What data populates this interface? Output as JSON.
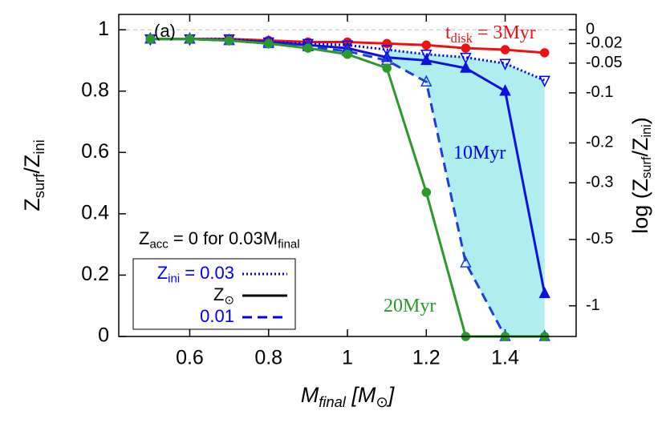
{
  "chart_data": {
    "type": "line",
    "xlabel": [
      "M",
      "final",
      " [M",
      "⊙",
      "]"
    ],
    "ylabel": [
      "Z",
      "surf",
      "/Z",
      "ini"
    ],
    "y2label": [
      "log (Z",
      "surf",
      "/Z",
      "ini",
      ")"
    ],
    "x": [
      0.5,
      0.6,
      0.7,
      0.8,
      0.9,
      1.0,
      1.1,
      1.2,
      1.3,
      1.4,
      1.5
    ],
    "xlim": [
      0.42,
      1.58
    ],
    "ylim": [
      0,
      1.05
    ],
    "xticks": [
      0.6,
      0.8,
      1,
      1.2,
      1.4
    ],
    "yticks": [
      0,
      0.2,
      0.4,
      0.6,
      0.8,
      1
    ],
    "y2lim": [
      0,
      1.05
    ],
    "y2_transform": "log10",
    "y2ticks": [
      0,
      -0.02,
      -0.05,
      -0.1,
      -0.2,
      -0.3,
      -0.5,
      -1
    ],
    "reference_line": 1,
    "series": [
      {
        "color": "#ee1111",
        "dash": "solid",
        "marker": "circle",
        "values": [
          0.97,
          0.97,
          0.97,
          0.965,
          0.96,
          0.96,
          0.955,
          0.95,
          0.94,
          0.935,
          0.925
        ]
      },
      {
        "color": "#0000ee",
        "dash": "dotted",
        "marker": "triangle-down-open",
        "values": [
          0.97,
          0.97,
          0.97,
          0.96,
          0.955,
          0.95,
          0.935,
          0.92,
          0.91,
          0.89,
          0.835
        ]
      },
      {
        "color": "#1010dd",
        "dash": "solid",
        "marker": "triangle",
        "values": [
          0.97,
          0.97,
          0.965,
          0.96,
          0.95,
          0.94,
          0.91,
          0.9,
          0.875,
          0.8,
          0.14
        ]
      },
      {
        "color": "#1a3ee0",
        "dash": "dashed",
        "marker": "triangle-open",
        "values": [
          0.97,
          0.97,
          0.965,
          0.955,
          0.945,
          0.93,
          0.9,
          0.83,
          0.24,
          0,
          0
        ]
      },
      {
        "color": "#2a9a2a",
        "dash": "solid",
        "marker": "circle",
        "values": [
          0.97,
          0.97,
          0.965,
          0.955,
          0.94,
          0.92,
          0.875,
          0.47,
          0,
          0,
          0
        ]
      }
    ],
    "fill_between": {
      "series": [
        1,
        3
      ],
      "from_index": 6,
      "color": "#aeeeee"
    },
    "legend": [
      {
        "label": [
          "Z",
          "ini",
          " = 0.03"
        ],
        "color": "#0000ee",
        "text_color": "#0000ee",
        "dash": "dotted"
      },
      {
        "label": [
          "Z",
          "⊙"
        ],
        "color": "#000000",
        "text_color": "#000000",
        "dash": "solid"
      },
      {
        "label": [
          "0.01"
        ],
        "color": "#0000ee",
        "text_color": "#0000ee",
        "dash": "dashed"
      }
    ],
    "annotations": [
      {
        "text": [
          "(a)"
        ],
        "color": "#000000"
      },
      {
        "text": [
          "t",
          "disk",
          " = 3Myr"
        ],
        "color": "#ee1111"
      },
      {
        "text": [
          "10Myr"
        ],
        "color": "#0000ee"
      },
      {
        "text": [
          "20Myr"
        ],
        "color": "#2a9a2a"
      },
      {
        "text": [
          "Z",
          "acc",
          " = 0 for 0.03M",
          "final"
        ],
        "color": "#000000"
      }
    ]
  }
}
